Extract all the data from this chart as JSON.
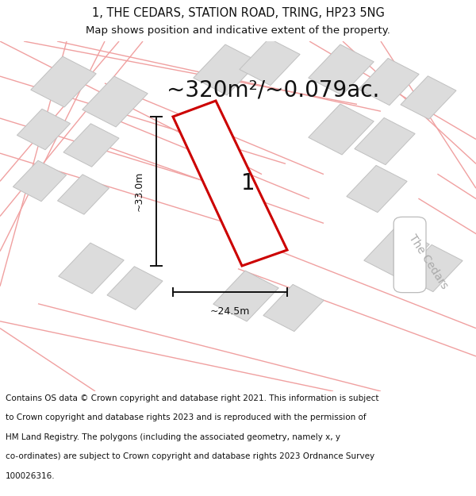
{
  "title_line1": "1, THE CEDARS, STATION ROAD, TRING, HP23 5NG",
  "title_line2": "Map shows position and indicative extent of the property.",
  "area_text": "~320m²/~0.079ac.",
  "dim_vertical": "~33.0m",
  "dim_horizontal": "~24.5m",
  "plot_label": "1",
  "road_label": "The Cedars",
  "footer_lines": [
    "Contains OS data © Crown copyright and database right 2021. This information is subject",
    "to Crown copyright and database rights 2023 and is reproduced with the permission of",
    "HM Land Registry. The polygons (including the associated geometry, namely x, y",
    "co-ordinates) are subject to Crown copyright and database rights 2023 Ordnance Survey",
    "100026316."
  ],
  "map_bg": "#f2f2f2",
  "road_line_color": "#f0a0a0",
  "building_fill": "#dcdcdc",
  "building_edge": "#c0c0c0",
  "plot_fill": "#ffffff",
  "plot_edge": "#cc0000",
  "dim_color": "#111111",
  "text_color": "#111111",
  "road_label_color": "#aaaaaa",
  "title_fontsize": 10.5,
  "subtitle_fontsize": 9.5,
  "area_fontsize": 20,
  "footer_fontsize": 7.5,
  "dim_fontsize": 9,
  "label_fontsize": 20,
  "road_label_fontsize": 10
}
